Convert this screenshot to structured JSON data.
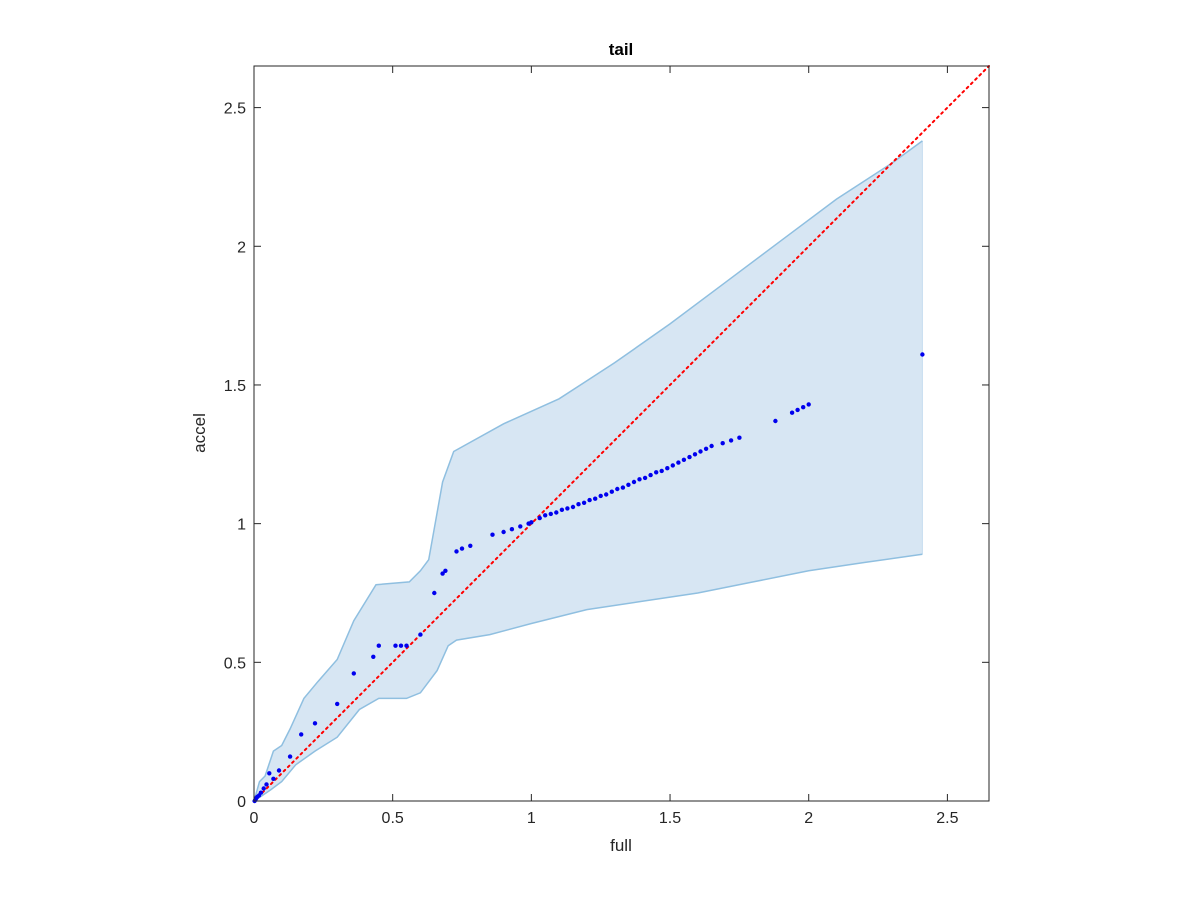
{
  "chart_data": {
    "type": "scatter",
    "title": "tail",
    "xlabel": "full",
    "ylabel": "accel",
    "xlim": [
      0,
      2.65
    ],
    "ylim": [
      0,
      2.65
    ],
    "xticks": [
      "0",
      "0.5",
      "1",
      "1.5",
      "2",
      "2.5"
    ],
    "yticks": [
      "0",
      "0.5",
      "1",
      "1.5",
      "2",
      "2.5"
    ],
    "grid": false,
    "colors": {
      "points": "#0000ee",
      "reference": "#ff0000",
      "band_fill": "#d7e6f3",
      "band_edge": "#8fbfe0",
      "axes": "#262626"
    },
    "band": {
      "upper": [
        [
          0,
          0
        ],
        [
          0.02,
          0.07
        ],
        [
          0.04,
          0.09
        ],
        [
          0.07,
          0.18
        ],
        [
          0.1,
          0.2
        ],
        [
          0.13,
          0.26
        ],
        [
          0.18,
          0.37
        ],
        [
          0.23,
          0.43
        ],
        [
          0.3,
          0.51
        ],
        [
          0.36,
          0.65
        ],
        [
          0.44,
          0.78
        ],
        [
          0.56,
          0.79
        ],
        [
          0.6,
          0.83
        ],
        [
          0.63,
          0.87
        ],
        [
          0.68,
          1.15
        ],
        [
          0.72,
          1.26
        ],
        [
          0.9,
          1.36
        ],
        [
          1.1,
          1.45
        ],
        [
          1.3,
          1.58
        ],
        [
          1.5,
          1.72
        ],
        [
          1.7,
          1.87
        ],
        [
          1.9,
          2.02
        ],
        [
          2.1,
          2.17
        ],
        [
          2.3,
          2.3
        ],
        [
          2.41,
          2.38
        ]
      ],
      "lower": [
        [
          2.41,
          0.89
        ],
        [
          2.2,
          0.86
        ],
        [
          2.0,
          0.83
        ],
        [
          1.8,
          0.79
        ],
        [
          1.6,
          0.75
        ],
        [
          1.4,
          0.72
        ],
        [
          1.2,
          0.69
        ],
        [
          1.0,
          0.64
        ],
        [
          0.85,
          0.6
        ],
        [
          0.73,
          0.58
        ],
        [
          0.7,
          0.56
        ],
        [
          0.66,
          0.47
        ],
        [
          0.6,
          0.39
        ],
        [
          0.55,
          0.37
        ],
        [
          0.45,
          0.37
        ],
        [
          0.38,
          0.33
        ],
        [
          0.3,
          0.23
        ],
        [
          0.22,
          0.18
        ],
        [
          0.15,
          0.13
        ],
        [
          0.1,
          0.07
        ],
        [
          0.06,
          0.04
        ],
        [
          0.03,
          0.02
        ],
        [
          0,
          0
        ]
      ]
    },
    "reference_line": [
      [
        0,
        0
      ],
      [
        2.65,
        2.65
      ]
    ],
    "series": [
      {
        "x": [
          0.002,
          0.005,
          0.008,
          0.012,
          0.018,
          0.025,
          0.035,
          0.045,
          0.055,
          0.07,
          0.09,
          0.13,
          0.17,
          0.22,
          0.3,
          0.36,
          0.43,
          0.45,
          0.51,
          0.53,
          0.55,
          0.6,
          0.65,
          0.68,
          0.69,
          0.73,
          0.75,
          0.78,
          0.86,
          0.9,
          0.93,
          0.96,
          0.99,
          1.0,
          1.03,
          1.05,
          1.07,
          1.09,
          1.11,
          1.13,
          1.15,
          1.17,
          1.19,
          1.21,
          1.23,
          1.25,
          1.27,
          1.29,
          1.31,
          1.33,
          1.35,
          1.37,
          1.39,
          1.41,
          1.43,
          1.45,
          1.47,
          1.49,
          1.51,
          1.53,
          1.55,
          1.57,
          1.59,
          1.61,
          1.63,
          1.65,
          1.69,
          1.72,
          1.75,
          1.88,
          1.94,
          1.96,
          1.98,
          2.0,
          2.41
        ],
        "y": [
          0.0,
          0.005,
          0.01,
          0.015,
          0.02,
          0.03,
          0.045,
          0.06,
          0.1,
          0.08,
          0.11,
          0.16,
          0.24,
          0.28,
          0.35,
          0.46,
          0.52,
          0.56,
          0.56,
          0.56,
          0.56,
          0.6,
          0.75,
          0.82,
          0.83,
          0.9,
          0.91,
          0.92,
          0.96,
          0.97,
          0.98,
          0.99,
          1.0,
          1.005,
          1.02,
          1.03,
          1.035,
          1.04,
          1.05,
          1.055,
          1.06,
          1.07,
          1.075,
          1.085,
          1.09,
          1.1,
          1.105,
          1.115,
          1.125,
          1.13,
          1.14,
          1.15,
          1.16,
          1.165,
          1.175,
          1.185,
          1.19,
          1.2,
          1.21,
          1.22,
          1.23,
          1.24,
          1.25,
          1.26,
          1.27,
          1.28,
          1.29,
          1.3,
          1.31,
          1.37,
          1.4,
          1.41,
          1.42,
          1.43,
          1.61
        ]
      }
    ]
  }
}
